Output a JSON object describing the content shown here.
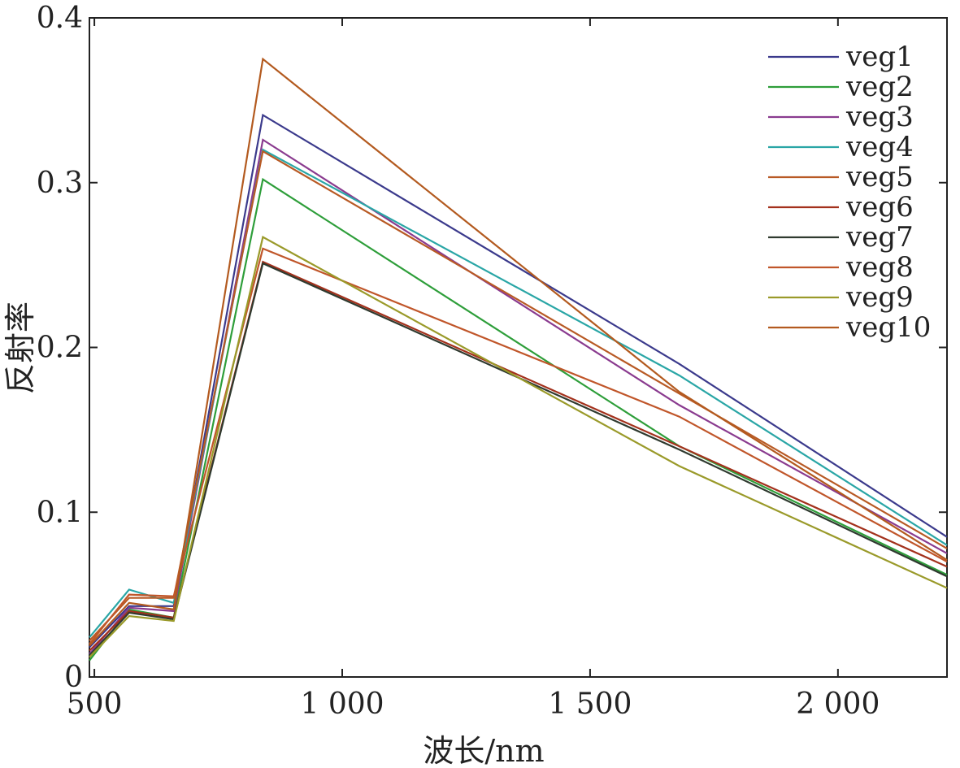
{
  "chart_data": {
    "type": "line",
    "xlabel": "波长/nm",
    "ylabel": "反射率",
    "xlim": [
      490,
      2220
    ],
    "ylim": [
      0,
      0.4
    ],
    "xticks": [
      500,
      1000,
      1500,
      2000
    ],
    "xtick_labels": [
      "500",
      "1 000",
      "1 500",
      "2 000"
    ],
    "yticks": [
      0,
      0.1,
      0.2,
      0.3,
      0.4
    ],
    "ytick_labels": [
      "0",
      "0.1",
      "0.2",
      "0.3",
      "0.4"
    ],
    "legend_position": "top-right",
    "grid": false,
    "x": [
      490,
      570,
      660,
      840,
      1680,
      2220
    ],
    "series": [
      {
        "name": "veg1",
        "color": "#3b3a8c",
        "values": [
          0.018,
          0.043,
          0.043,
          0.341,
          0.19,
          0.085
        ]
      },
      {
        "name": "veg2",
        "color": "#2e9e3a",
        "values": [
          0.01,
          0.041,
          0.036,
          0.302,
          0.14,
          0.062
        ]
      },
      {
        "name": "veg3",
        "color": "#8a3b8f",
        "values": [
          0.014,
          0.042,
          0.04,
          0.326,
          0.165,
          0.075
        ]
      },
      {
        "name": "veg4",
        "color": "#2aa6a6",
        "values": [
          0.024,
          0.053,
          0.045,
          0.32,
          0.183,
          0.08
        ]
      },
      {
        "name": "veg5",
        "color": "#b85a25",
        "values": [
          0.022,
          0.048,
          0.048,
          0.319,
          0.172,
          0.078
        ]
      },
      {
        "name": "veg6",
        "color": "#a3311c",
        "values": [
          0.016,
          0.04,
          0.036,
          0.252,
          0.14,
          0.067
        ]
      },
      {
        "name": "veg7",
        "color": "#2f3a2f",
        "values": [
          0.013,
          0.039,
          0.035,
          0.251,
          0.138,
          0.061
        ]
      },
      {
        "name": "veg8",
        "color": "#c0562a",
        "values": [
          0.02,
          0.05,
          0.049,
          0.26,
          0.158,
          0.07
        ]
      },
      {
        "name": "veg9",
        "color": "#9a9a2a",
        "values": [
          0.012,
          0.037,
          0.034,
          0.267,
          0.128,
          0.054
        ]
      },
      {
        "name": "veg10",
        "color": "#b35a1f",
        "values": [
          0.019,
          0.045,
          0.041,
          0.375,
          0.173,
          0.071
        ]
      }
    ]
  }
}
